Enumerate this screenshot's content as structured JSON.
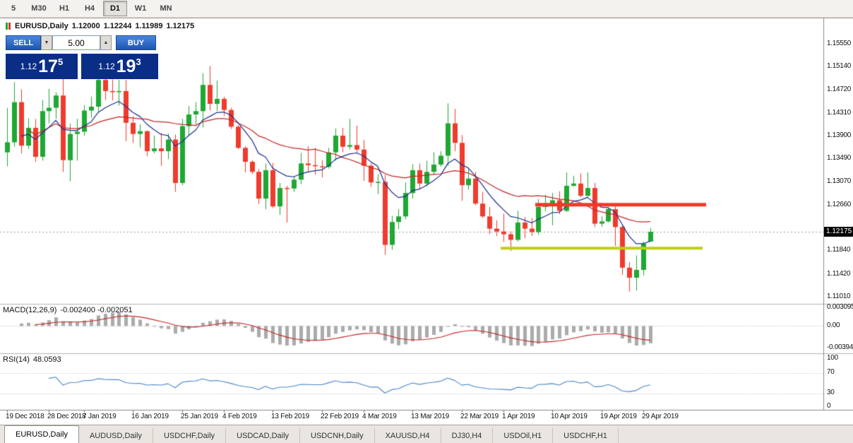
{
  "toolbar": {
    "timeframes": [
      {
        "label": "5",
        "active": false
      },
      {
        "label": "M30",
        "active": false
      },
      {
        "label": "H1",
        "active": false
      },
      {
        "label": "H4",
        "active": false
      },
      {
        "label": "D1",
        "active": true
      },
      {
        "label": "W1",
        "active": false
      },
      {
        "label": "MN",
        "active": false
      }
    ]
  },
  "chart_header": {
    "symbol": "EURUSD,Daily",
    "open": "1.12000",
    "high": "1.12244",
    "low": "1.11989",
    "close": "1.12175"
  },
  "trade_panel": {
    "sell_label": "SELL",
    "buy_label": "BUY",
    "volume": "5.00",
    "spin_down": "▼",
    "spin_up": "▲",
    "sell_price": {
      "prefix": "1.12",
      "big": "17",
      "sup": "5",
      "full": "1.12175"
    },
    "buy_price": {
      "prefix": "1.12",
      "big": "19",
      "sup": "3",
      "full": "1.12193"
    }
  },
  "colors": {
    "candle_up": "#1fa833",
    "candle_down": "#ef3b2d",
    "macd_histogram": "#ababab",
    "macd_signal": "#c22727",
    "rsi_line": "#4a86c8"
  },
  "tabs": {
    "items": [
      {
        "label": "EURUSD,Daily",
        "active": true
      },
      {
        "label": "AUDUSD,Daily",
        "active": false
      },
      {
        "label": "USDCHF,Daily",
        "active": false
      },
      {
        "label": "USDCAD,Daily",
        "active": false
      },
      {
        "label": "USDCNH,Daily",
        "active": false
      },
      {
        "label": "XAUUSD,H4",
        "active": false
      },
      {
        "label": "DJ30,H4",
        "active": false
      },
      {
        "label": "USDOil,H1",
        "active": false
      },
      {
        "label": "USDCHF,H1",
        "active": false
      }
    ]
  },
  "chart_data": {
    "type": "candlestick",
    "symbol": "EURUSD",
    "timeframe": "D1",
    "last_price": 1.12175,
    "current_price_label": "1.12175",
    "y_axis_labels": [
      "1.15550",
      "1.15140",
      "1.14720",
      "1.14310",
      "1.13900",
      "1.13490",
      "1.13070",
      "1.12660",
      "1.11840",
      "1.11420",
      "1.11010"
    ],
    "date_ticks": [
      {
        "label": "19 Dec 2018",
        "bar": 0
      },
      {
        "label": "28 Dec 2018",
        "bar": 6
      },
      {
        "label": "7 Jan 2019",
        "bar": 11
      },
      {
        "label": "16 Jan 2019",
        "bar": 18
      },
      {
        "label": "25 Jan 2019",
        "bar": 25
      },
      {
        "label": "4 Feb 2019",
        "bar": 31
      },
      {
        "label": "13 Feb 2019",
        "bar": 38
      },
      {
        "label": "22 Feb 2019",
        "bar": 45
      },
      {
        "label": "4 Mar 2019",
        "bar": 51
      },
      {
        "label": "13 Mar 2019",
        "bar": 58
      },
      {
        "label": "22 Mar 2019",
        "bar": 65
      },
      {
        "label": "1 Apr 2019",
        "bar": 71
      },
      {
        "label": "10 Apr 2019",
        "bar": 78
      },
      {
        "label": "19 Apr 2019",
        "bar": 85
      },
      {
        "label": "29 Apr 2019",
        "bar": 91
      }
    ],
    "overlays": {
      "ma_fast": {
        "type": "ema",
        "period": 8,
        "color": "#1b2d8f"
      },
      "ma_slow": {
        "type": "sma",
        "period": 20,
        "color": "#c22727"
      },
      "resistance": {
        "price": 1.1266,
        "from_bar": 76,
        "to_bar": 100,
        "color": "#fb352a",
        "thickness": 5
      },
      "support": {
        "price": 1.1188,
        "from_bar": 71,
        "to_bar": 99.5,
        "color": "#bfce14",
        "thickness": 4
      }
    },
    "indicators": [
      {
        "name": "MACD",
        "display": "MACD(12,26,9)",
        "values": "-0.002400 -0.002051",
        "params": [
          12,
          26,
          9
        ],
        "scale": {
          "max": "0.003095",
          "zero": "0.00",
          "min": "-0.003942"
        }
      },
      {
        "name": "RSI",
        "display": "RSI(14)",
        "value": "48.0593",
        "params": [
          14
        ],
        "levels": [
          100,
          70,
          30,
          0
        ]
      }
    ],
    "ohlc": [
      [
        1.136,
        1.144,
        1.1335,
        1.1378
      ],
      [
        1.1378,
        1.1486,
        1.137,
        1.145
      ],
      [
        1.145,
        1.1473,
        1.1358,
        1.1372
      ],
      [
        1.1372,
        1.1421,
        1.1366,
        1.1404
      ],
      [
        1.1404,
        1.142,
        1.1343,
        1.1352
      ],
      [
        1.1352,
        1.1454,
        1.1345,
        1.1434
      ],
      [
        1.1434,
        1.1474,
        1.1412,
        1.144
      ],
      [
        1.144,
        1.1468,
        1.142,
        1.1462
      ],
      [
        1.1462,
        1.1497,
        1.1325,
        1.1346
      ],
      [
        1.1346,
        1.1412,
        1.1308,
        1.1393
      ],
      [
        1.1393,
        1.142,
        1.1345,
        1.1397
      ],
      [
        1.1397,
        1.1445,
        1.139,
        1.1435
      ],
      [
        1.1435,
        1.146,
        1.1422,
        1.1442
      ],
      [
        1.1442,
        1.15,
        1.1433,
        1.149
      ],
      [
        1.149,
        1.1502,
        1.1454,
        1.147
      ],
      [
        1.147,
        1.1491,
        1.1453,
        1.1468
      ],
      [
        1.1468,
        1.149,
        1.1444,
        1.147
      ],
      [
        1.147,
        1.149,
        1.138,
        1.1413
      ],
      [
        1.1413,
        1.1425,
        1.1377,
        1.1393
      ],
      [
        1.1393,
        1.141,
        1.1369,
        1.1398
      ],
      [
        1.1398,
        1.1399,
        1.1353,
        1.1362
      ],
      [
        1.1362,
        1.139,
        1.1358,
        1.1367
      ],
      [
        1.1367,
        1.1395,
        1.1336,
        1.1362
      ],
      [
        1.1362,
        1.1394,
        1.1348,
        1.1383
      ],
      [
        1.1383,
        1.1392,
        1.1289,
        1.1305
      ],
      [
        1.1305,
        1.142,
        1.1301,
        1.1407
      ],
      [
        1.1407,
        1.1443,
        1.139,
        1.1428
      ],
      [
        1.1428,
        1.145,
        1.141,
        1.1434
      ],
      [
        1.1434,
        1.1502,
        1.1405,
        1.1481
      ],
      [
        1.1481,
        1.1515,
        1.1435,
        1.1447
      ],
      [
        1.1447,
        1.1489,
        1.1434,
        1.1456
      ],
      [
        1.1456,
        1.146,
        1.1425,
        1.1436
      ],
      [
        1.1436,
        1.144,
        1.1402,
        1.1406
      ],
      [
        1.1406,
        1.1409,
        1.1366,
        1.1368
      ],
      [
        1.1368,
        1.1371,
        1.1324,
        1.1343
      ],
      [
        1.1343,
        1.1346,
        1.1321,
        1.1325
      ],
      [
        1.1325,
        1.133,
        1.1267,
        1.1277
      ],
      [
        1.1277,
        1.134,
        1.1258,
        1.1328
      ],
      [
        1.1328,
        1.1341,
        1.126,
        1.1263
      ],
      [
        1.1263,
        1.1305,
        1.1248,
        1.1296
      ],
      [
        1.1296,
        1.13,
        1.1234,
        1.1295
      ],
      [
        1.1295,
        1.1317,
        1.1289,
        1.1311
      ],
      [
        1.1311,
        1.1359,
        1.1303,
        1.134
      ],
      [
        1.134,
        1.1371,
        1.1325,
        1.1337
      ],
      [
        1.1337,
        1.1368,
        1.132,
        1.1335
      ],
      [
        1.1335,
        1.1346,
        1.1315,
        1.1334
      ],
      [
        1.1334,
        1.1368,
        1.1331,
        1.136
      ],
      [
        1.136,
        1.1403,
        1.1345,
        1.139
      ],
      [
        1.139,
        1.1404,
        1.136,
        1.137
      ],
      [
        1.137,
        1.142,
        1.1365,
        1.1373
      ],
      [
        1.1373,
        1.1408,
        1.1358,
        1.1365
      ],
      [
        1.1365,
        1.1382,
        1.1309,
        1.1336
      ],
      [
        1.1336,
        1.134,
        1.1298,
        1.1306
      ],
      [
        1.1306,
        1.1321,
        1.1285,
        1.1307
      ],
      [
        1.1307,
        1.132,
        1.1176,
        1.1194
      ],
      [
        1.1194,
        1.1246,
        1.1185,
        1.1235
      ],
      [
        1.1235,
        1.1258,
        1.1222,
        1.1245
      ],
      [
        1.1245,
        1.1306,
        1.124,
        1.1287
      ],
      [
        1.1287,
        1.1339,
        1.1277,
        1.1328
      ],
      [
        1.1328,
        1.134,
        1.1294,
        1.1304
      ],
      [
        1.1304,
        1.1345,
        1.1299,
        1.1325
      ],
      [
        1.1325,
        1.136,
        1.132,
        1.1338
      ],
      [
        1.1338,
        1.1362,
        1.1334,
        1.1354
      ],
      [
        1.1354,
        1.1448,
        1.1336,
        1.1412
      ],
      [
        1.1412,
        1.1438,
        1.1362,
        1.1377
      ],
      [
        1.1377,
        1.1391,
        1.1273,
        1.1301
      ],
      [
        1.1301,
        1.133,
        1.1293,
        1.1313
      ],
      [
        1.1313,
        1.1325,
        1.1265,
        1.1268
      ],
      [
        1.1268,
        1.1289,
        1.1242,
        1.1245
      ],
      [
        1.1245,
        1.1262,
        1.1213,
        1.1223
      ],
      [
        1.1223,
        1.1238,
        1.121,
        1.1218
      ],
      [
        1.1218,
        1.125,
        1.1199,
        1.1213
      ],
      [
        1.1213,
        1.1218,
        1.1183,
        1.1203
      ],
      [
        1.1203,
        1.1255,
        1.12,
        1.1234
      ],
      [
        1.1234,
        1.1244,
        1.1206,
        1.1223
      ],
      [
        1.1223,
        1.1242,
        1.121,
        1.1217
      ],
      [
        1.1217,
        1.1276,
        1.1212,
        1.1262
      ],
      [
        1.1262,
        1.1284,
        1.1254,
        1.1265
      ],
      [
        1.1265,
        1.1287,
        1.1229,
        1.1274
      ],
      [
        1.1274,
        1.129,
        1.1249,
        1.1255
      ],
      [
        1.1255,
        1.1324,
        1.1253,
        1.13
      ],
      [
        1.13,
        1.1318,
        1.1298,
        1.1304
      ],
      [
        1.1304,
        1.1322,
        1.1279,
        1.1282
      ],
      [
        1.1282,
        1.1324,
        1.128,
        1.1296
      ],
      [
        1.1296,
        1.1305,
        1.1226,
        1.1232
      ],
      [
        1.1232,
        1.1245,
        1.1226,
        1.1236
      ],
      [
        1.1236,
        1.1262,
        1.1234,
        1.1258
      ],
      [
        1.1258,
        1.1264,
        1.1192,
        1.1226
      ],
      [
        1.1226,
        1.123,
        1.114,
        1.1153
      ],
      [
        1.1153,
        1.1163,
        1.111,
        1.1135
      ],
      [
        1.1135,
        1.1175,
        1.1112,
        1.1149
      ],
      [
        1.1149,
        1.12,
        1.1139,
        1.1196
      ],
      [
        1.12,
        1.12244,
        1.11989,
        1.12175
      ]
    ]
  }
}
